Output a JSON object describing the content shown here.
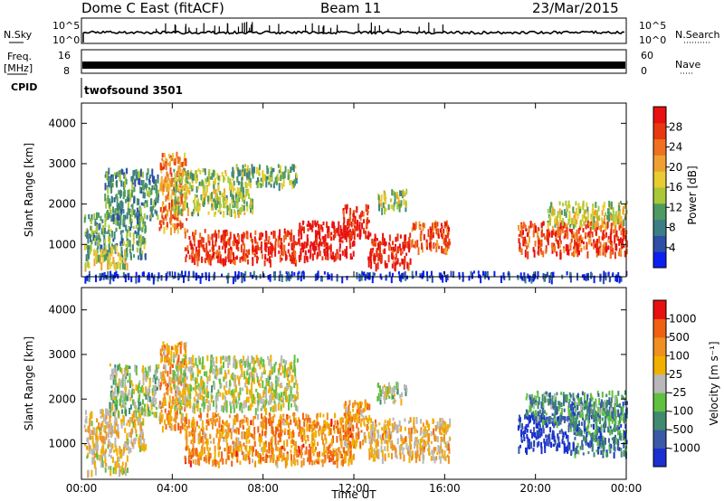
{
  "header": {
    "title": "Dome C East (fitACF)",
    "beam": "Beam 11",
    "date": "23/Mar/2015"
  },
  "strips": {
    "nsky_label": "N.Sky",
    "nsky_ticks": [
      "10^5",
      "10^0"
    ],
    "nsearch_label": "N.Search",
    "nsearch_ticks": [
      "10^5",
      "10^0"
    ],
    "freq_label_1": "Freq.",
    "freq_label_2": "[MHz]",
    "freq_ticks": [
      "16",
      "8"
    ],
    "nave_label": "Nave",
    "nave_ticks": [
      "60",
      "0"
    ],
    "cpid_label": "CPID",
    "cpid_value": "twofsound 3501"
  },
  "chart_data": [
    {
      "type": "heatmap",
      "name": "power-panel",
      "ylabel": "Slant Range [km]",
      "yticks": [
        1000,
        2000,
        3000,
        4000
      ],
      "ylim": [
        200,
        4500
      ],
      "xticks": [
        "00:00",
        "04:00",
        "08:00",
        "12:00",
        "16:00",
        "20:00",
        "00:00"
      ],
      "xlim_hours": [
        0,
        24
      ],
      "colorbar": {
        "label": "Power [dB]",
        "ticks": [
          "4",
          "8",
          "12",
          "16",
          "20",
          "24",
          "28"
        ],
        "colors": [
          "#0a1ff0",
          "#2e4ea8",
          "#3c7e86",
          "#4e9a60",
          "#a9c838",
          "#e8cc30",
          "#f0a030",
          "#f07020",
          "#e83810",
          "#e81010"
        ]
      },
      "regions": [
        {
          "t0": 0.1,
          "t1": 2.8,
          "r0": 700,
          "r1": 1800,
          "level": 0.35
        },
        {
          "t0": 0.1,
          "t1": 2.0,
          "r0": 500,
          "r1": 900,
          "level": 0.5
        },
        {
          "t0": 1.0,
          "t1": 3.4,
          "r0": 1700,
          "r1": 2900,
          "level": 0.3
        },
        {
          "t0": 3.4,
          "t1": 4.6,
          "r0": 1400,
          "r1": 3300,
          "level": 0.72
        },
        {
          "t0": 4.0,
          "t1": 7.5,
          "r0": 1800,
          "r1": 2900,
          "level": 0.45
        },
        {
          "t0": 4.5,
          "t1": 9.5,
          "r0": 600,
          "r1": 1400,
          "level": 0.88
        },
        {
          "t0": 6.5,
          "t1": 9.5,
          "r0": 2500,
          "r1": 3000,
          "level": 0.4
        },
        {
          "t0": 9.5,
          "t1": 12.0,
          "r0": 700,
          "r1": 1600,
          "level": 0.97
        },
        {
          "t0": 11.5,
          "t1": 12.7,
          "r0": 1200,
          "r1": 2000,
          "level": 0.9
        },
        {
          "t0": 12.6,
          "t1": 14.5,
          "r0": 500,
          "r1": 1300,
          "level": 0.95
        },
        {
          "t0": 14.5,
          "t1": 16.2,
          "r0": 900,
          "r1": 1600,
          "level": 0.82
        },
        {
          "t0": 13.0,
          "t1": 14.3,
          "r0": 1900,
          "r1": 2400,
          "level": 0.45
        },
        {
          "t0": 19.2,
          "t1": 24.0,
          "r0": 800,
          "r1": 1600,
          "level": 0.85
        },
        {
          "t0": 20.5,
          "t1": 24.0,
          "r0": 1500,
          "r1": 2100,
          "level": 0.5
        },
        {
          "t0": 0.0,
          "t1": 24.0,
          "r0": 200,
          "r1": 350,
          "level": 0.1
        }
      ]
    },
    {
      "type": "heatmap",
      "name": "velocity-panel",
      "ylabel": "Slant Range [km]",
      "yticks": [
        1000,
        2000,
        3000,
        4000
      ],
      "ylim": [
        200,
        4500
      ],
      "xticks": [
        "00:00",
        "04:00",
        "08:00",
        "12:00",
        "16:00",
        "20:00",
        "00:00"
      ],
      "xlim_hours": [
        0,
        24
      ],
      "xlabel": "Time UT",
      "colorbar": {
        "label": "Velocity [m s⁻¹]",
        "ticks": [
          "1000",
          "500",
          "100",
          "25",
          "-25",
          "-100",
          "-500",
          "-1000"
        ],
        "colors": [
          "#1a30d0",
          "#3a5aa8",
          "#3f8a70",
          "#60c040",
          "#b8b8b8",
          "#f0b000",
          "#f09020",
          "#f06010",
          "#e81010"
        ]
      },
      "regions": [
        {
          "t0": 0.1,
          "t1": 2.8,
          "r0": 900,
          "r1": 1800,
          "level": 0.6
        },
        {
          "t0": 0.2,
          "t1": 2.0,
          "r0": 400,
          "r1": 900,
          "level": 0.55
        },
        {
          "t0": 1.2,
          "t1": 3.4,
          "r0": 1700,
          "r1": 2800,
          "level": 0.45
        },
        {
          "t0": 3.4,
          "t1": 4.6,
          "r0": 1400,
          "r1": 3300,
          "level": 0.7
        },
        {
          "t0": 4.0,
          "t1": 9.5,
          "r0": 1800,
          "r1": 3000,
          "level": 0.5
        },
        {
          "t0": 4.5,
          "t1": 12.0,
          "r0": 600,
          "r1": 1700,
          "level": 0.72
        },
        {
          "t0": 11.5,
          "t1": 12.7,
          "r0": 1000,
          "r1": 2000,
          "level": 0.68
        },
        {
          "t0": 12.6,
          "t1": 16.2,
          "r0": 700,
          "r1": 1600,
          "level": 0.62
        },
        {
          "t0": 13.0,
          "t1": 14.3,
          "r0": 1900,
          "r1": 2400,
          "level": 0.45
        },
        {
          "t0": 19.2,
          "t1": 21.5,
          "r0": 900,
          "r1": 1700,
          "level": 0.05
        },
        {
          "t0": 21.5,
          "t1": 24.0,
          "r0": 800,
          "r1": 2000,
          "level": 0.22
        },
        {
          "t0": 19.5,
          "t1": 24.0,
          "r0": 1500,
          "r1": 2200,
          "level": 0.3
        }
      ]
    }
  ]
}
